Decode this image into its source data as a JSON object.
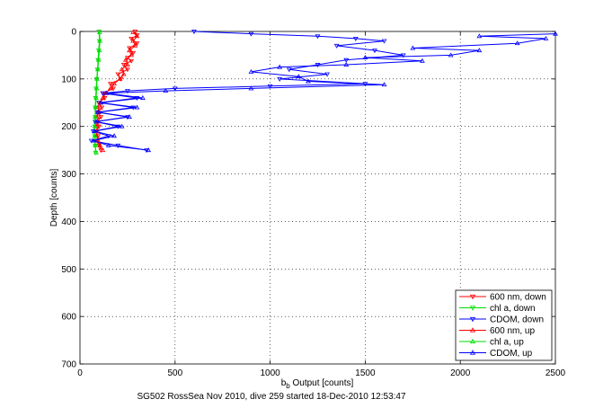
{
  "chart_data": {
    "type": "line",
    "xlabel_main": "b",
    "xlabel_sub": "b",
    "xlabel_rest": " Output [counts]",
    "ylabel": "Depth [counts]",
    "caption": "SG502 RossSea Nov 2010, dive 259 started 18-Dec-2010 12:53:47",
    "xlim": [
      0,
      2500
    ],
    "ylim": [
      700,
      0
    ],
    "y_reversed": true,
    "grid": true,
    "legend_position": "bottom-right",
    "xticks": [
      0,
      500,
      1000,
      1500,
      2000,
      2500
    ],
    "yticks": [
      0,
      100,
      200,
      300,
      400,
      500,
      600,
      700
    ],
    "series": [
      {
        "name": "600 nm, down",
        "color": "#ff0000",
        "marker": "triangle-down",
        "points": [
          [
            290,
            0
          ],
          [
            300,
            8
          ],
          [
            270,
            15
          ],
          [
            300,
            25
          ],
          [
            260,
            35
          ],
          [
            280,
            45
          ],
          [
            250,
            55
          ],
          [
            270,
            62
          ],
          [
            230,
            70
          ],
          [
            250,
            80
          ],
          [
            200,
            90
          ],
          [
            215,
            100
          ],
          [
            160,
            110
          ],
          [
            175,
            120
          ],
          [
            120,
            130
          ],
          [
            130,
            140
          ],
          [
            100,
            150
          ],
          [
            115,
            160
          ],
          [
            95,
            170
          ],
          [
            110,
            180
          ],
          [
            90,
            190
          ],
          [
            100,
            200
          ],
          [
            85,
            210
          ],
          [
            95,
            220
          ],
          [
            90,
            230
          ],
          [
            100,
            240
          ],
          [
            110,
            250
          ]
        ]
      },
      {
        "name": "chl a, down",
        "color": "#00dd00",
        "marker": "triangle-down",
        "points": [
          [
            100,
            0
          ],
          [
            102,
            20
          ],
          [
            98,
            40
          ],
          [
            95,
            60
          ],
          [
            92,
            80
          ],
          [
            88,
            100
          ],
          [
            85,
            120
          ],
          [
            82,
            140
          ],
          [
            80,
            160
          ],
          [
            80,
            180
          ],
          [
            78,
            200
          ],
          [
            78,
            220
          ],
          [
            80,
            240
          ],
          [
            82,
            255
          ]
        ]
      },
      {
        "name": "CDOM, down",
        "color": "#0000ff",
        "marker": "triangle-down",
        "points": [
          [
            600,
            0
          ],
          [
            900,
            5
          ],
          [
            1250,
            10
          ],
          [
            1450,
            15
          ],
          [
            1600,
            20
          ],
          [
            1350,
            30
          ],
          [
            1550,
            40
          ],
          [
            1700,
            50
          ],
          [
            1400,
            60
          ],
          [
            1250,
            70
          ],
          [
            1100,
            80
          ],
          [
            1300,
            90
          ],
          [
            1050,
            100
          ],
          [
            1500,
            110
          ],
          [
            1000,
            115
          ],
          [
            500,
            120
          ],
          [
            250,
            125
          ],
          [
            120,
            130
          ],
          [
            300,
            140
          ],
          [
            100,
            150
          ],
          [
            280,
            160
          ],
          [
            90,
            170
          ],
          [
            250,
            180
          ],
          [
            80,
            190
          ],
          [
            200,
            200
          ],
          [
            70,
            210
          ],
          [
            150,
            220
          ],
          [
            60,
            230
          ],
          [
            200,
            240
          ],
          [
            350,
            250
          ]
        ]
      },
      {
        "name": "600 nm, up",
        "color": "#ff0000",
        "marker": "triangle-up",
        "points": [
          [
            120,
            250
          ],
          [
            105,
            240
          ],
          [
            95,
            230
          ],
          [
            88,
            220
          ],
          [
            92,
            210
          ],
          [
            85,
            200
          ],
          [
            95,
            190
          ],
          [
            90,
            180
          ],
          [
            100,
            170
          ],
          [
            95,
            160
          ],
          [
            105,
            150
          ],
          [
            120,
            140
          ],
          [
            135,
            130
          ],
          [
            160,
            120
          ],
          [
            180,
            110
          ],
          [
            210,
            100
          ],
          [
            230,
            90
          ],
          [
            220,
            80
          ],
          [
            250,
            70
          ],
          [
            240,
            60
          ],
          [
            270,
            50
          ],
          [
            260,
            40
          ],
          [
            290,
            30
          ],
          [
            280,
            20
          ],
          [
            300,
            10
          ],
          [
            280,
            2
          ]
        ]
      },
      {
        "name": "chl a, up",
        "color": "#00dd00",
        "marker": "triangle-up",
        "points": [
          [
            85,
            255
          ],
          [
            80,
            240
          ],
          [
            78,
            220
          ],
          [
            78,
            200
          ],
          [
            80,
            180
          ],
          [
            82,
            160
          ],
          [
            85,
            140
          ],
          [
            88,
            120
          ],
          [
            90,
            100
          ],
          [
            94,
            80
          ],
          [
            98,
            60
          ],
          [
            102,
            40
          ],
          [
            105,
            20
          ],
          [
            103,
            2
          ]
        ]
      },
      {
        "name": "CDOM, up",
        "color": "#0000ff",
        "marker": "triangle-up",
        "points": [
          [
            360,
            250
          ],
          [
            150,
            240
          ],
          [
            70,
            230
          ],
          [
            180,
            220
          ],
          [
            75,
            210
          ],
          [
            220,
            200
          ],
          [
            85,
            190
          ],
          [
            260,
            180
          ],
          [
            95,
            170
          ],
          [
            300,
            160
          ],
          [
            110,
            150
          ],
          [
            330,
            140
          ],
          [
            140,
            130
          ],
          [
            450,
            125
          ],
          [
            900,
            120
          ],
          [
            1600,
            112
          ],
          [
            1200,
            105
          ],
          [
            1150,
            95
          ],
          [
            900,
            85
          ],
          [
            1050,
            75
          ],
          [
            1400,
            70
          ],
          [
            1800,
            62
          ],
          [
            1500,
            55
          ],
          [
            1950,
            50
          ],
          [
            2100,
            40
          ],
          [
            1750,
            35
          ],
          [
            2300,
            25
          ],
          [
            2450,
            15
          ],
          [
            2100,
            10
          ],
          [
            2500,
            5
          ]
        ]
      }
    ]
  }
}
